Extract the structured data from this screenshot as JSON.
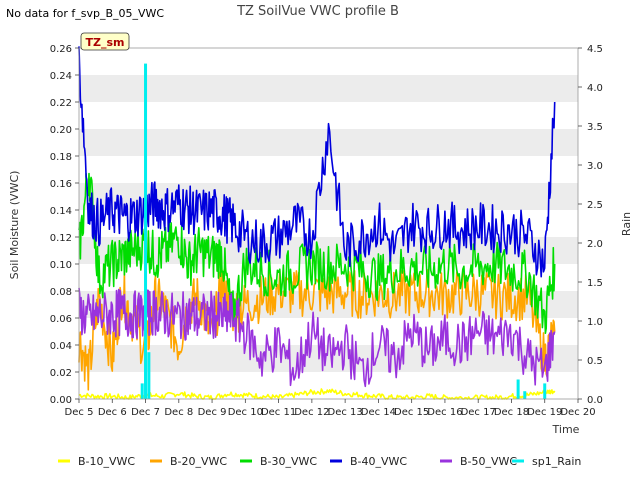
{
  "header": {
    "no_data_note": "No data for f_svp_B_05_VWC"
  },
  "chart_data": {
    "type": "line",
    "title": "TZ SoilVue VWC profile B",
    "site_badge": "TZ_sm",
    "xlabel": "Time",
    "ylabel": "Soil Moisture (VWC)",
    "y2label": "Rain",
    "xlim": [
      5,
      20
    ],
    "ylim": [
      0,
      0.26
    ],
    "y2lim": [
      0,
      4.5
    ],
    "x_ticks": [
      5,
      6,
      7,
      8,
      9,
      10,
      11,
      12,
      13,
      14,
      15,
      16,
      17,
      18,
      19,
      20
    ],
    "x_tick_labels": [
      "Dec 5",
      "Dec 6",
      "Dec 7",
      "Dec 8",
      "Dec 9",
      "Dec 10",
      "Dec 11",
      "Dec 12",
      "Dec 13",
      "Dec 14",
      "Dec 15",
      "Dec 16",
      "Dec 17",
      "Dec 18",
      "Dec 19",
      "Dec 20"
    ],
    "y_ticks": [
      0,
      0.02,
      0.04,
      0.06,
      0.08,
      0.1,
      0.12,
      0.14,
      0.16,
      0.18,
      0.2,
      0.22,
      0.24,
      0.26
    ],
    "y_tick_labels": [
      "0.00",
      "0.02",
      "0.04",
      "0.06",
      "0.08",
      "0.10",
      "0.12",
      "0.14",
      "0.16",
      "0.18",
      "0.20",
      "0.22",
      "0.24",
      "0.26"
    ],
    "y2_ticks": [
      0,
      0.5,
      1,
      1.5,
      2,
      2.5,
      3,
      3.5,
      4,
      4.5
    ],
    "y2_tick_labels": [
      "0.0",
      "0.5",
      "1.0",
      "1.5",
      "2.0",
      "2.5",
      "3.0",
      "3.5",
      "4.0",
      "4.5"
    ],
    "grid": "horizontal bands",
    "legend_position": "bottom",
    "series": [
      {
        "name": "B-10_VWC",
        "color": "#ffff00",
        "axis": "left",
        "x": [
          5.0,
          5.5,
          6.0,
          6.5,
          7.0,
          7.5,
          8.0,
          8.5,
          9.0,
          9.5,
          10.0,
          10.5,
          11.0,
          11.5,
          12.0,
          12.5,
          13.0,
          13.5,
          14.0,
          14.5,
          15.0,
          15.5,
          16.0,
          16.5,
          17.0,
          17.5,
          18.0,
          18.5,
          19.0,
          19.3
        ],
        "y": [
          0.003,
          0.002,
          0.002,
          0.001,
          0.003,
          0.002,
          0.004,
          0.002,
          0.001,
          0.004,
          0.003,
          0.002,
          0.001,
          0.003,
          0.005,
          0.006,
          0.004,
          0.003,
          0.002,
          0.001,
          0.001,
          0.002,
          0.001,
          0.001,
          0.001,
          0.001,
          0.002,
          0.003,
          0.005,
          0.006
        ]
      },
      {
        "name": "B-20_VWC",
        "color": "#ffa500",
        "axis": "left",
        "x": [
          5.0,
          5.3,
          5.6,
          6.0,
          6.3,
          6.6,
          7.0,
          7.3,
          7.6,
          8.0,
          8.3,
          8.6,
          9.0,
          9.3,
          9.6,
          10.0,
          10.5,
          11.0,
          11.5,
          12.0,
          12.5,
          13.0,
          13.5,
          14.0,
          14.5,
          15.0,
          15.5,
          16.0,
          16.5,
          17.0,
          17.5,
          18.0,
          18.5,
          19.0,
          19.3
        ],
        "y": [
          0.045,
          0.02,
          0.075,
          0.03,
          0.08,
          0.06,
          0.035,
          0.075,
          0.065,
          0.04,
          0.07,
          0.075,
          0.045,
          0.085,
          0.065,
          0.07,
          0.075,
          0.08,
          0.078,
          0.079,
          0.078,
          0.079,
          0.077,
          0.078,
          0.077,
          0.078,
          0.079,
          0.077,
          0.078,
          0.079,
          0.077,
          0.076,
          0.075,
          0.03,
          0.05
        ]
      },
      {
        "name": "B-30_VWC",
        "color": "#00dd00",
        "axis": "left",
        "x": [
          5.0,
          5.3,
          5.6,
          6.0,
          6.3,
          6.6,
          7.0,
          7.3,
          7.6,
          8.0,
          8.3,
          8.6,
          9.0,
          9.3,
          9.6,
          10.0,
          10.5,
          11.0,
          11.5,
          12.0,
          12.5,
          13.0,
          13.5,
          14.0,
          14.5,
          15.0,
          15.5,
          16.0,
          16.5,
          17.0,
          17.5,
          18.0,
          18.5,
          19.0,
          19.3
        ],
        "y": [
          0.11,
          0.17,
          0.09,
          0.1,
          0.105,
          0.11,
          0.115,
          0.105,
          0.11,
          0.12,
          0.1,
          0.11,
          0.105,
          0.108,
          0.06,
          0.1,
          0.095,
          0.09,
          0.095,
          0.1,
          0.098,
          0.1,
          0.095,
          0.09,
          0.095,
          0.098,
          0.095,
          0.1,
          0.095,
          0.098,
          0.1,
          0.095,
          0.092,
          0.06,
          0.1
        ]
      },
      {
        "name": "B-40_VWC",
        "color": "#0000dd",
        "axis": "left",
        "x": [
          5.0,
          5.3,
          5.6,
          6.0,
          6.3,
          6.6,
          7.0,
          7.3,
          7.6,
          8.0,
          8.3,
          8.6,
          9.0,
          9.3,
          9.6,
          10.0,
          10.5,
          11.0,
          11.5,
          12.0,
          12.5,
          13.0,
          13.5,
          14.0,
          14.5,
          15.0,
          15.5,
          16.0,
          16.5,
          17.0,
          17.5,
          18.0,
          18.5,
          19.0,
          19.3
        ],
        "y": [
          0.25,
          0.14,
          0.13,
          0.14,
          0.135,
          0.135,
          0.14,
          0.145,
          0.14,
          0.145,
          0.14,
          0.138,
          0.14,
          0.137,
          0.13,
          0.12,
          0.115,
          0.12,
          0.13,
          0.12,
          0.2,
          0.11,
          0.12,
          0.13,
          0.11,
          0.13,
          0.125,
          0.13,
          0.125,
          0.128,
          0.126,
          0.125,
          0.12,
          0.1,
          0.22
        ]
      },
      {
        "name": "B-50_VWC",
        "color": "#9933dd",
        "axis": "left",
        "x": [
          5.0,
          5.3,
          5.6,
          6.0,
          6.3,
          6.6,
          7.0,
          7.3,
          7.6,
          8.0,
          8.3,
          8.6,
          9.0,
          9.3,
          9.6,
          10.0,
          10.5,
          11.0,
          11.5,
          12.0,
          12.5,
          13.0,
          13.5,
          14.0,
          14.5,
          15.0,
          15.5,
          16.0,
          16.5,
          17.0,
          17.5,
          18.0,
          18.5,
          19.0,
          19.3
        ],
        "y": [
          0.065,
          0.06,
          0.062,
          0.063,
          0.064,
          0.062,
          0.063,
          0.065,
          0.062,
          0.061,
          0.062,
          0.06,
          0.063,
          0.06,
          0.062,
          0.05,
          0.03,
          0.04,
          0.02,
          0.05,
          0.03,
          0.04,
          0.02,
          0.04,
          0.03,
          0.05,
          0.035,
          0.045,
          0.04,
          0.05,
          0.045,
          0.05,
          0.03,
          0.02,
          0.05
        ]
      },
      {
        "name": "sp1_Rain",
        "color": "#00eeee",
        "axis": "right",
        "x": [
          5.0,
          6.8,
          6.9,
          7.0,
          7.1,
          7.2,
          10.0,
          14.0,
          18.0,
          18.2,
          18.4,
          19.0,
          19.2
        ],
        "y": [
          0,
          0,
          0.2,
          4.3,
          0.6,
          0,
          0,
          0,
          0,
          0.25,
          0.1,
          0.2,
          0
        ],
        "draw": "bars"
      }
    ]
  }
}
